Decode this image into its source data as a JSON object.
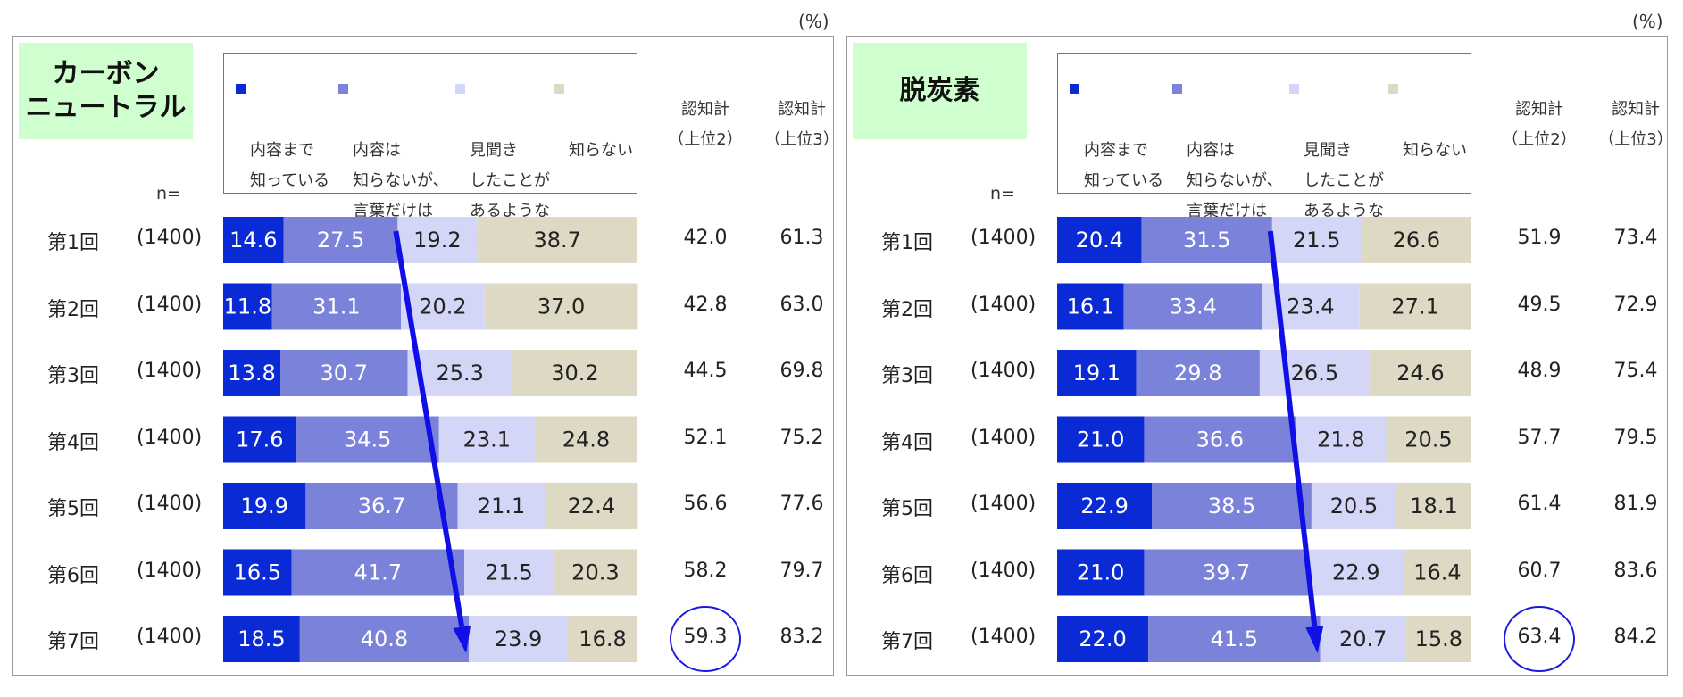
{
  "unit": "(%)",
  "n_label": "n=",
  "colors": {
    "s1": "#0a2ad6",
    "s2": "#7b82d9",
    "s3": "#d4d6f8",
    "s4": "#ded9c4",
    "arrow": "#1010e6",
    "circle": "#1a1ae0"
  },
  "legend": [
    {
      "name": "内容まで\n知っている"
    },
    {
      "name": "内容は\n知らないが、\n言葉だけは\n知っている"
    },
    {
      "name": "見聞き\nしたことが\nあるような\n気がする"
    },
    {
      "name": "知らない"
    }
  ],
  "col_headers": [
    "認知計\n（上位2）",
    "認知計\n（上位3）"
  ],
  "chart_data": [
    {
      "type": "bar",
      "title": "カーボン\nニュートラル",
      "categories": [
        "第1回",
        "第2回",
        "第3回",
        "第4回",
        "第5回",
        "第6回",
        "第7回"
      ],
      "n": [
        "(1400)",
        "(1400)",
        "(1400)",
        "(1400)",
        "(1400)",
        "(1400)",
        "(1400)"
      ],
      "series": [
        {
          "name": "内容まで知っている",
          "values": [
            14.6,
            11.8,
            13.8,
            17.6,
            19.9,
            16.5,
            18.5
          ]
        },
        {
          "name": "内容は知らないが、言葉だけは知っている",
          "values": [
            27.5,
            31.1,
            30.7,
            34.5,
            36.7,
            41.7,
            40.8
          ]
        },
        {
          "name": "見聞きしたことがあるような気がする",
          "values": [
            19.2,
            20.2,
            25.3,
            23.1,
            21.1,
            21.5,
            23.9
          ]
        },
        {
          "name": "知らない",
          "values": [
            38.7,
            37.0,
            30.2,
            24.8,
            22.4,
            20.3,
            16.8
          ]
        }
      ],
      "top2": [
        "42.0",
        "42.8",
        "44.5",
        "52.1",
        "56.6",
        "58.2",
        "59.3"
      ],
      "top3": [
        "61.3",
        "63.0",
        "69.8",
        "75.2",
        "77.6",
        "79.7",
        "83.2"
      ],
      "xlim": [
        0,
        100
      ]
    },
    {
      "type": "bar",
      "title": "脱炭素",
      "categories": [
        "第1回",
        "第2回",
        "第3回",
        "第4回",
        "第5回",
        "第6回",
        "第7回"
      ],
      "n": [
        "(1400)",
        "(1400)",
        "(1400)",
        "(1400)",
        "(1400)",
        "(1400)",
        "(1400)"
      ],
      "series": [
        {
          "name": "内容まで知っている",
          "values": [
            20.4,
            16.1,
            19.1,
            21.0,
            22.9,
            21.0,
            22.0
          ]
        },
        {
          "name": "内容は知らないが、言葉だけは知っている",
          "values": [
            31.5,
            33.4,
            29.8,
            36.6,
            38.5,
            39.7,
            41.5
          ]
        },
        {
          "name": "見聞きしたことがあるような気がする",
          "values": [
            21.5,
            23.4,
            26.5,
            21.8,
            20.5,
            22.9,
            20.7
          ]
        },
        {
          "name": "知らない",
          "values": [
            26.6,
            27.1,
            24.6,
            20.5,
            18.1,
            16.4,
            15.8
          ]
        }
      ],
      "top2": [
        "51.9",
        "49.5",
        "48.9",
        "57.7",
        "61.4",
        "60.7",
        "63.4"
      ],
      "top3": [
        "73.4",
        "72.9",
        "75.4",
        "79.5",
        "81.9",
        "83.6",
        "84.2"
      ],
      "xlim": [
        0,
        100
      ]
    }
  ]
}
